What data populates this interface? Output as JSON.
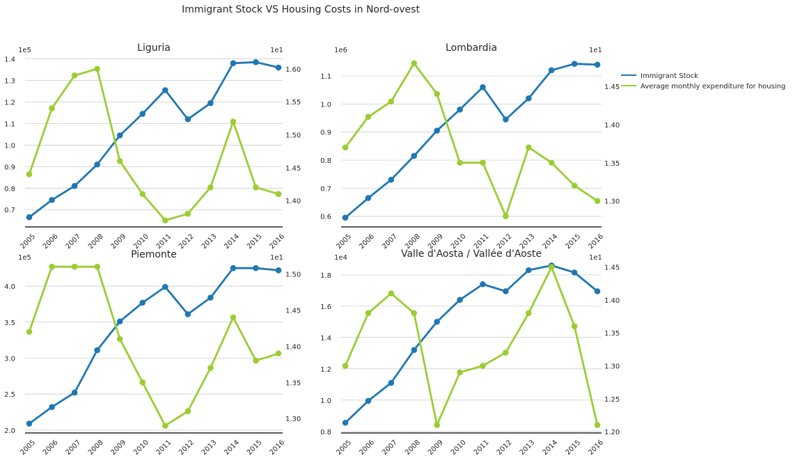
{
  "figure": {
    "title": "Immigrant Stock VS Housing Costs in Nord-ovest",
    "legend": {
      "placement": "right",
      "entries": [
        {
          "label": "Immigrant Stock",
          "color": "#1f77b4"
        },
        {
          "label": "Average monthly expenditure for housing",
          "color": "#9acd32"
        }
      ]
    }
  },
  "chart_data": [
    {
      "type": "line",
      "title": "Liguria",
      "x": [
        "2005",
        "2006",
        "2007",
        "2008",
        "2009",
        "2010",
        "2011",
        "2012",
        "2013",
        "2014",
        "2015",
        "2016"
      ],
      "grid": true,
      "left_axis": {
        "offset_label": "1e5",
        "ylim": [
          0.62,
          1.415
        ],
        "ticks": [
          0.7,
          0.8,
          0.9,
          1.0,
          1.1,
          1.2,
          1.3,
          1.4
        ],
        "tick_labels": [
          "0.7",
          "0.8",
          "0.9",
          "1.0",
          "1.1",
          "1.2",
          "1.3",
          "1.4"
        ]
      },
      "right_axis": {
        "offset_label": "1e1",
        "ylim": [
          1.36,
          1.62
        ],
        "ticks": [
          1.4,
          1.45,
          1.5,
          1.55,
          1.6
        ],
        "tick_labels": [
          "1.40",
          "1.45",
          "1.50",
          "1.55",
          "1.60"
        ]
      },
      "series": [
        {
          "name": "Immigrant Stock",
          "axis": "left",
          "color": "#1f77b4",
          "values": [
            0.665,
            0.745,
            0.81,
            0.91,
            1.045,
            1.145,
            1.255,
            1.12,
            1.195,
            1.38,
            1.385,
            1.36
          ]
        },
        {
          "name": "Average monthly expenditure for housing",
          "axis": "right",
          "color": "#9acd32",
          "values": [
            1.44,
            1.54,
            1.59,
            1.6,
            1.46,
            1.41,
            1.37,
            1.38,
            1.42,
            1.52,
            1.42,
            1.41
          ]
        }
      ]
    },
    {
      "type": "line",
      "title": "Lombardia",
      "x": [
        "2005",
        "2006",
        "2007",
        "2008",
        "2009",
        "2010",
        "2011",
        "2012",
        "2013",
        "2014",
        "2015",
        "2016"
      ],
      "grid": true,
      "left_axis": {
        "offset_label": "1e6",
        "ylim": [
          0.562,
          1.172
        ],
        "ticks": [
          0.6,
          0.7,
          0.8,
          0.9,
          1.0,
          1.1
        ],
        "tick_labels": [
          "0.6",
          "0.7",
          "0.8",
          "0.9",
          "1.0",
          "1.1"
        ]
      },
      "right_axis": {
        "offset_label": "1e1",
        "ylim": [
          1.266,
          1.49
        ],
        "ticks": [
          1.3,
          1.35,
          1.4,
          1.45
        ],
        "tick_labels": [
          "1.30",
          "1.35",
          "1.40",
          "1.45"
        ]
      },
      "series": [
        {
          "name": "Immigrant Stock",
          "axis": "left",
          "color": "#1f77b4",
          "values": [
            0.595,
            0.665,
            0.73,
            0.815,
            0.905,
            0.98,
            1.06,
            0.945,
            1.02,
            1.12,
            1.143,
            1.14
          ]
        },
        {
          "name": "Average monthly expenditure for housing",
          "axis": "right",
          "color": "#9acd32",
          "values": [
            1.37,
            1.41,
            1.43,
            1.48,
            1.44,
            1.35,
            1.35,
            1.28,
            1.37,
            1.35,
            1.32,
            1.3
          ]
        }
      ]
    },
    {
      "type": "line",
      "title": "Piemonte",
      "x": [
        "2005",
        "2006",
        "2007",
        "2008",
        "2009",
        "2010",
        "2011",
        "2012",
        "2013",
        "2014",
        "2015",
        "2016"
      ],
      "grid": true,
      "left_axis": {
        "offset_label": "1e5",
        "ylim": [
          1.96,
          4.32
        ],
        "ticks": [
          2.0,
          2.5,
          3.0,
          3.5,
          4.0
        ],
        "tick_labels": [
          "2.0",
          "2.5",
          "3.0",
          "3.5",
          "4.0"
        ]
      },
      "right_axis": {
        "offset_label": "1e1",
        "ylim": [
          1.28,
          1.515
        ],
        "ticks": [
          1.3,
          1.35,
          1.4,
          1.45,
          1.5
        ],
        "tick_labels": [
          "1.30",
          "1.35",
          "1.40",
          "1.45",
          "1.50"
        ]
      },
      "series": [
        {
          "name": "Immigrant Stock",
          "axis": "left",
          "color": "#1f77b4",
          "values": [
            2.09,
            2.32,
            2.52,
            3.11,
            3.51,
            3.77,
            3.99,
            3.61,
            3.84,
            4.25,
            4.25,
            4.22
          ]
        },
        {
          "name": "Average monthly expenditure for housing",
          "axis": "right",
          "color": "#9acd32",
          "values": [
            1.42,
            1.51,
            1.51,
            1.51,
            1.41,
            1.35,
            1.29,
            1.31,
            1.37,
            1.44,
            1.38,
            1.39
          ]
        }
      ]
    },
    {
      "type": "line",
      "title": "Valle d'Aosta / Vallée d'Aoste",
      "x": [
        "2005",
        "2006",
        "2007",
        "2008",
        "2009",
        "2010",
        "2011",
        "2012",
        "2013",
        "2014",
        "2015",
        "2016"
      ],
      "grid": true,
      "left_axis": {
        "offset_label": "1e4",
        "ylim": [
          0.79,
          1.875
        ],
        "ticks": [
          0.8,
          1.0,
          1.2,
          1.4,
          1.6,
          1.8
        ],
        "tick_labels": [
          "0.8",
          "1.0",
          "1.2",
          "1.4",
          "1.6",
          "1.8"
        ]
      },
      "right_axis": {
        "offset_label": "1e1",
        "ylim": [
          1.198,
          1.456
        ],
        "ticks": [
          1.2,
          1.25,
          1.3,
          1.35,
          1.4,
          1.45
        ],
        "tick_labels": [
          "1.20",
          "1.25",
          "1.30",
          "1.35",
          "1.40",
          "1.45"
        ]
      },
      "series": [
        {
          "name": "Immigrant Stock",
          "axis": "left",
          "color": "#1f77b4",
          "values": [
            0.855,
            0.995,
            1.11,
            1.32,
            1.5,
            1.64,
            1.74,
            1.695,
            1.83,
            1.86,
            1.815,
            1.695
          ]
        },
        {
          "name": "Average monthly expenditure for housing",
          "axis": "right",
          "color": "#9acd32",
          "values": [
            1.3,
            1.38,
            1.41,
            1.38,
            1.21,
            1.29,
            1.3,
            1.32,
            1.38,
            1.45,
            1.36,
            1.21
          ]
        }
      ]
    }
  ]
}
